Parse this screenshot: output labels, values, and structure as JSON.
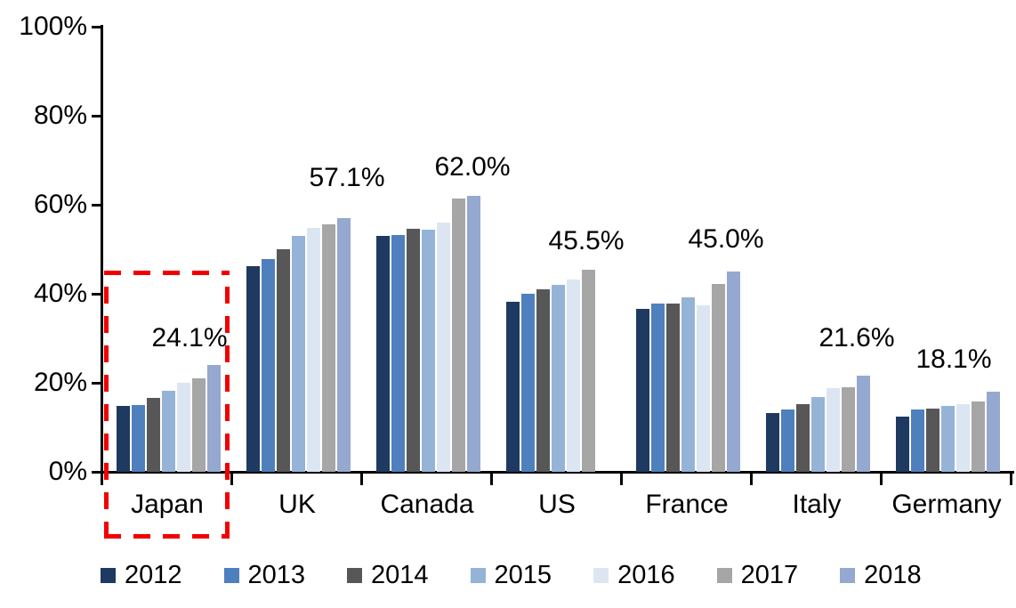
{
  "chart_data": {
    "type": "bar",
    "title": "",
    "xlabel": "",
    "ylabel": "",
    "categories": [
      "Japan",
      "UK",
      "Canada",
      "US",
      "France",
      "Italy",
      "Germany"
    ],
    "series": [
      {
        "name": "2012",
        "color": "#1F3A60",
        "values": [
          14.8,
          46.2,
          53.0,
          38.2,
          36.6,
          13.3,
          12.5
        ]
      },
      {
        "name": "2013",
        "color": "#4E80BD",
        "values": [
          15.0,
          47.8,
          53.3,
          40.0,
          37.8,
          14.0,
          14.0
        ]
      },
      {
        "name": "2014",
        "color": "#575757",
        "values": [
          16.7,
          50.0,
          54.6,
          41.0,
          37.8,
          15.2,
          14.3
        ]
      },
      {
        "name": "2015",
        "color": "#95B3D7",
        "values": [
          18.3,
          53.0,
          54.4,
          42.0,
          39.3,
          16.8,
          14.8
        ]
      },
      {
        "name": "2016",
        "color": "#DCE6F2",
        "values": [
          20.0,
          54.8,
          56.0,
          43.3,
          37.4,
          18.8,
          15.3
        ]
      },
      {
        "name": "2017",
        "color": "#A6A6A6",
        "values": [
          21.0,
          55.6,
          61.4,
          45.5,
          42.2,
          19.0,
          15.8
        ]
      },
      {
        "name": "2018",
        "color": "#95A8D0",
        "values": [
          24.1,
          57.1,
          62.0,
          null,
          45.0,
          21.6,
          18.1
        ]
      }
    ],
    "data_labels": [
      "24.1%",
      "57.1%",
      "62.0%",
      "45.5%",
      "45.0%",
      "21.6%",
      "18.1%"
    ],
    "y_ticks": [
      "100%",
      "80%",
      "60%",
      "40%",
      "20%",
      "0%"
    ],
    "ylim": [
      0,
      100
    ],
    "grid": false,
    "legend_position": "bottom",
    "axis_color": "#000000",
    "highlight": {
      "category": "Japan",
      "style": "dashed-box",
      "color": "#FF0000"
    }
  }
}
